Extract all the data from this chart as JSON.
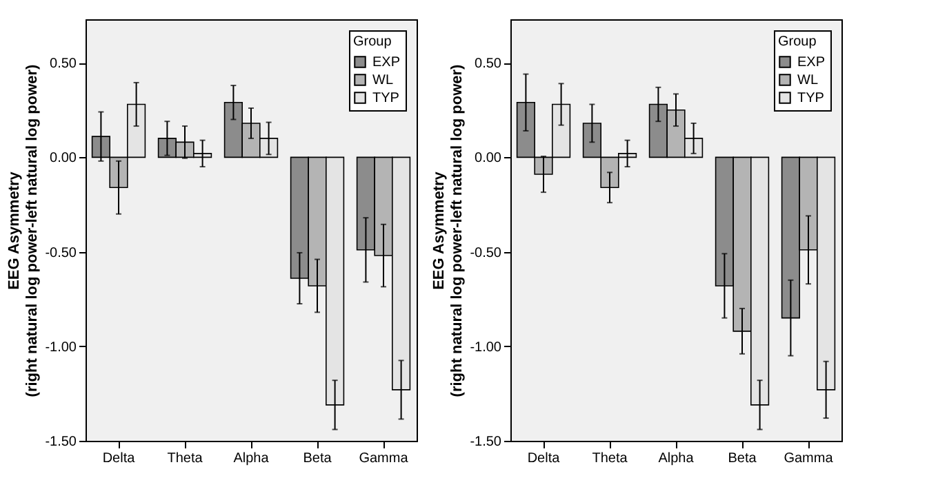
{
  "chart_data": [
    {
      "type": "bar",
      "ylabel": "EEG Asymmetry\n(right natural log power-left natural log power)",
      "categories": [
        "Delta",
        "Theta",
        "Alpha",
        "Beta",
        "Gamma"
      ],
      "legend_title": "Group",
      "legend": "top right",
      "ylim": [
        -1.5,
        0.73
      ],
      "yticks": [
        {
          "value": -1.5,
          "label": "-1.50"
        },
        {
          "value": -1,
          "label": "-1.00"
        },
        {
          "value": -0.5,
          "label": "-0.50"
        },
        {
          "value": 0,
          "label": "0.00"
        },
        {
          "value": 0.5,
          "label": "0.50"
        }
      ],
      "series": [
        {
          "name": "EXP",
          "color": "#8c8c8c",
          "values": [
            0.11,
            0.1,
            0.29,
            -0.64,
            -0.49
          ],
          "errors": [
            0.13,
            0.09,
            0.09,
            0.135,
            0.17
          ]
        },
        {
          "name": "WL",
          "color": "#b4b4b4",
          "values": [
            -0.16,
            0.08,
            0.18,
            -0.68,
            -0.52
          ],
          "errors": [
            0.14,
            0.085,
            0.08,
            0.14,
            0.165
          ]
        },
        {
          "name": "TYP",
          "color": "#e4e4e4",
          "values": [
            0.28,
            0.02,
            0.1,
            -1.31,
            -1.23
          ],
          "errors": [
            0.115,
            0.07,
            0.085,
            0.13,
            0.155
          ]
        }
      ]
    },
    {
      "type": "bar",
      "ylabel": "EEG Asymmetry\n(right natural log power-left natural log power)",
      "categories": [
        "Delta",
        "Theta",
        "Alpha",
        "Beta",
        "Gamma"
      ],
      "legend_title": "Group",
      "legend": "top right",
      "ylim": [
        -1.5,
        0.73
      ],
      "yticks": [
        {
          "value": -1.5,
          "label": "-1.50"
        },
        {
          "value": -1,
          "label": "-1.00"
        },
        {
          "value": -0.5,
          "label": "-0.50"
        },
        {
          "value": 0,
          "label": "0.00"
        },
        {
          "value": 0.5,
          "label": "0.50"
        }
      ],
      "series": [
        {
          "name": "EXP",
          "color": "#8c8c8c",
          "values": [
            0.29,
            0.18,
            0.28,
            -0.68,
            -0.85
          ],
          "errors": [
            0.15,
            0.1,
            0.09,
            0.17,
            0.2
          ]
        },
        {
          "name": "WL",
          "color": "#b4b4b4",
          "values": [
            -0.09,
            -0.16,
            0.25,
            -0.92,
            -0.49
          ],
          "errors": [
            0.095,
            0.08,
            0.085,
            0.12,
            0.18
          ]
        },
        {
          "name": "TYP",
          "color": "#e4e4e4",
          "values": [
            0.28,
            0.02,
            0.1,
            -1.31,
            -1.23
          ],
          "errors": [
            0.11,
            0.07,
            0.08,
            0.13,
            0.15
          ]
        }
      ]
    }
  ]
}
